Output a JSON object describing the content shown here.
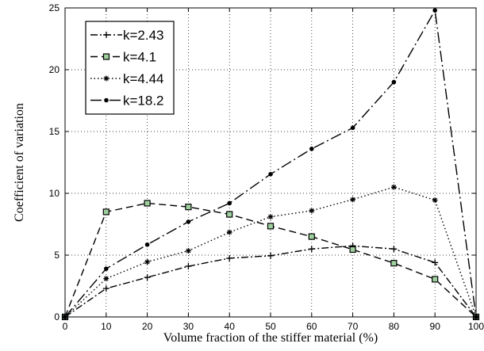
{
  "chart_data": {
    "type": "line",
    "xlabel": "Volume fraction of the stiffer material (%)",
    "ylabel": "Coefficient of variation",
    "xlim": [
      0,
      100
    ],
    "ylim": [
      0,
      25
    ],
    "xticks": [
      0,
      10,
      20,
      30,
      40,
      50,
      60,
      70,
      80,
      90,
      100
    ],
    "yticks": [
      0,
      5,
      10,
      15,
      20,
      25
    ],
    "grid": true,
    "legend_position": "top-left",
    "x": [
      0,
      10,
      20,
      30,
      40,
      50,
      60,
      70,
      80,
      90,
      100
    ],
    "series": [
      {
        "name": "k=2.43",
        "values": [
          0,
          2.3,
          3.2,
          4.1,
          4.75,
          4.95,
          5.5,
          5.75,
          5.5,
          4.4,
          0
        ],
        "marker": "plus",
        "dash": "dashdot",
        "color": "#000000"
      },
      {
        "name": "k=4.1",
        "values": [
          0,
          8.5,
          9.2,
          8.9,
          8.3,
          7.35,
          6.5,
          5.45,
          4.35,
          3.05,
          0
        ],
        "marker": "square",
        "dash": "dashed",
        "color": "#000000",
        "marker_fill": "#9fd19f"
      },
      {
        "name": "k=4.44",
        "values": [
          0,
          3.1,
          4.45,
          5.35,
          6.85,
          8.1,
          8.6,
          9.5,
          10.5,
          9.45,
          0
        ],
        "marker": "star",
        "dash": "dotted",
        "color": "#000000"
      },
      {
        "name": "k=18.2",
        "values": [
          0,
          3.9,
          5.85,
          7.7,
          9.2,
          11.55,
          13.6,
          15.3,
          19.0,
          24.8,
          0
        ],
        "marker": "dot",
        "dash": "longdashdot",
        "color": "#000000"
      }
    ]
  }
}
